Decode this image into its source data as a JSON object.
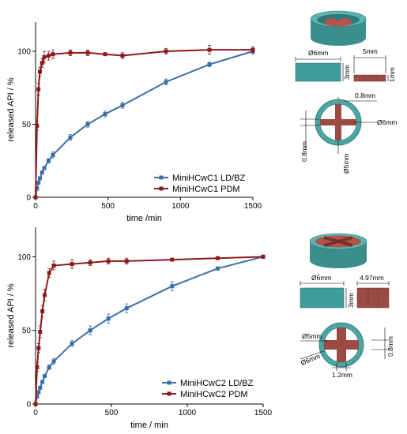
{
  "colors": {
    "blue": "#3a6ea5",
    "red": "#8b1a1a",
    "teal": "#3e9c9a",
    "brick": "#9c4a44"
  },
  "chart_data": [
    {
      "type": "line",
      "xlabel": "time /min",
      "ylabel": "released API / %",
      "xlim": [
        0,
        1500
      ],
      "ylim": [
        0,
        120
      ],
      "xticks": [
        0,
        500,
        1000,
        1500
      ],
      "yticks": [
        0,
        50,
        100
      ],
      "legend_position": "bottom-right",
      "series": [
        {
          "name": "MiniHCwC1 LD/BZ",
          "color": "#3a6ea5",
          "marker": "square",
          "x": [
            0,
            10,
            20,
            30,
            45,
            60,
            90,
            120,
            240,
            360,
            480,
            600,
            900,
            1200,
            1500
          ],
          "y": [
            0,
            6,
            10,
            13,
            17,
            20,
            25,
            29,
            41,
            50,
            57,
            63,
            79,
            91,
            100
          ],
          "err": [
            0,
            1,
            1,
            1,
            1,
            1,
            1.5,
            2,
            2,
            2,
            2,
            2,
            2,
            1.5,
            2
          ]
        },
        {
          "name": "MiniHCwC1 PDM",
          "color": "#8b1a1a",
          "marker": "square",
          "x": [
            0,
            10,
            20,
            30,
            45,
            60,
            90,
            120,
            240,
            360,
            480,
            600,
            900,
            1200,
            1500
          ],
          "y": [
            0,
            49,
            74,
            86,
            92,
            96,
            97,
            98,
            99,
            99,
            98,
            97,
            100,
            101,
            101
          ],
          "err": [
            0,
            3,
            4,
            3,
            3,
            4,
            3,
            3,
            2,
            2,
            1,
            2,
            2,
            3,
            2
          ]
        }
      ]
    },
    {
      "type": "line",
      "xlabel": "time / min",
      "ylabel": "released API / %",
      "xlim": [
        0,
        1500
      ],
      "ylim": [
        0,
        120
      ],
      "xticks": [
        0,
        500,
        1000,
        1500
      ],
      "yticks": [
        0,
        50,
        100
      ],
      "legend_position": "bottom-right",
      "series": [
        {
          "name": "MiniHCwC2 LD/BZ",
          "color": "#3a6ea5",
          "marker": "square",
          "x": [
            0,
            10,
            20,
            30,
            45,
            60,
            90,
            120,
            240,
            360,
            480,
            600,
            900,
            1200,
            1500
          ],
          "y": [
            0,
            5,
            8,
            11,
            15,
            19,
            25,
            29,
            41,
            50,
            58,
            65,
            80,
            92,
            100
          ],
          "err": [
            0,
            1,
            1,
            1,
            1,
            1,
            1.5,
            2,
            2,
            3,
            3,
            3,
            3,
            1,
            1
          ]
        },
        {
          "name": "MiniHCwC2 PDM",
          "color": "#8b1a1a",
          "marker": "square",
          "x": [
            0,
            10,
            20,
            30,
            45,
            60,
            90,
            120,
            240,
            360,
            480,
            600,
            900,
            1200,
            1500
          ],
          "y": [
            0,
            25,
            38,
            49,
            63,
            74,
            89,
            94,
            95,
            96,
            97,
            97,
            98,
            99,
            100
          ],
          "err": [
            0,
            3,
            3,
            4,
            4,
            4,
            3,
            3,
            3,
            2,
            2,
            2,
            1,
            1,
            1
          ]
        }
      ]
    }
  ],
  "diagram1": {
    "d_outer": "Ø6mm",
    "len": "5mm",
    "height": "3mm",
    "insert_h": "1mm",
    "wall": "0.8mm",
    "d_ring": "Ø6mm",
    "cross_w": "0.8mm",
    "d_inner": "Ø5mm"
  },
  "diagram2": {
    "d_outer": "Ø6mm",
    "len": "4.97mm",
    "height": "3mm",
    "d_inner": "Ø5mm",
    "d_ring": "Ø6mm",
    "cross_w": "0.8mm",
    "gap": "1.2mm"
  }
}
